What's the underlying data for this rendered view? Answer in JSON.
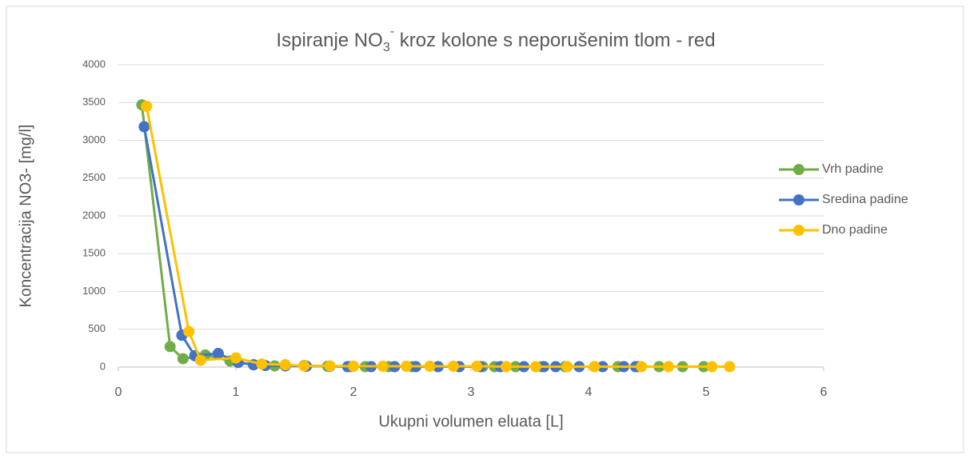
{
  "chart_data": {
    "type": "line",
    "title": [
      "Ispiranje NO",
      "3",
      "-",
      " kroz kolone s neporušenim tlom - red"
    ],
    "x_label": "Ukupni volumen eluata [L]",
    "y_label": "Koncentracija NO3- [mg/l]",
    "xlim": [
      0,
      6
    ],
    "xticks": [
      0,
      1,
      2,
      3,
      4,
      5,
      6
    ],
    "ylim": [
      0,
      4000
    ],
    "yticks": [
      0,
      500,
      1000,
      1500,
      2000,
      2500,
      3000,
      3500,
      4000
    ],
    "grid": true,
    "legend": "right",
    "series": [
      {
        "name": "Vrh padine",
        "color": "#70ad47",
        "x": [
          0.2,
          0.44,
          0.55,
          0.74,
          0.95,
          1.15,
          1.33,
          1.58,
          1.78,
          1.98,
          2.1,
          2.3,
          2.5,
          2.72,
          2.9,
          3.1,
          3.2,
          3.38,
          3.6,
          3.8,
          4.05,
          4.25,
          4.42,
          4.6,
          4.8,
          4.98
        ],
        "values": [
          3470,
          270,
          110,
          160,
          80,
          30,
          15,
          20,
          10,
          5,
          5,
          5,
          5,
          5,
          5,
          5,
          5,
          5,
          5,
          5,
          5,
          5,
          5,
          5,
          5,
          5
        ]
      },
      {
        "name": "Sredina padine",
        "color": "#4472c4",
        "x": [
          0.22,
          0.54,
          0.65,
          0.85,
          1.02,
          1.15,
          1.25,
          1.42,
          1.6,
          1.8,
          1.95,
          2.15,
          2.35,
          2.53,
          2.72,
          2.9,
          3.08,
          3.25,
          3.45,
          3.62,
          3.72,
          3.92,
          4.12,
          4.3,
          4.4
        ],
        "values": [
          3180,
          420,
          150,
          180,
          60,
          30,
          20,
          15,
          10,
          10,
          5,
          5,
          5,
          5,
          5,
          5,
          5,
          5,
          5,
          5,
          5,
          5,
          5,
          5,
          5
        ]
      },
      {
        "name": "Dno padine",
        "color": "#ffc000",
        "x": [
          0.24,
          0.6,
          0.7,
          1.0,
          1.22,
          1.42,
          1.58,
          1.8,
          2.0,
          2.25,
          2.45,
          2.65,
          2.85,
          3.05,
          3.3,
          3.55,
          3.82,
          4.05,
          4.45,
          4.68,
          5.05,
          5.2
        ],
        "values": [
          3450,
          470,
          90,
          120,
          40,
          30,
          15,
          15,
          10,
          10,
          10,
          10,
          10,
          10,
          5,
          5,
          5,
          5,
          5,
          5,
          5,
          5
        ]
      }
    ]
  }
}
